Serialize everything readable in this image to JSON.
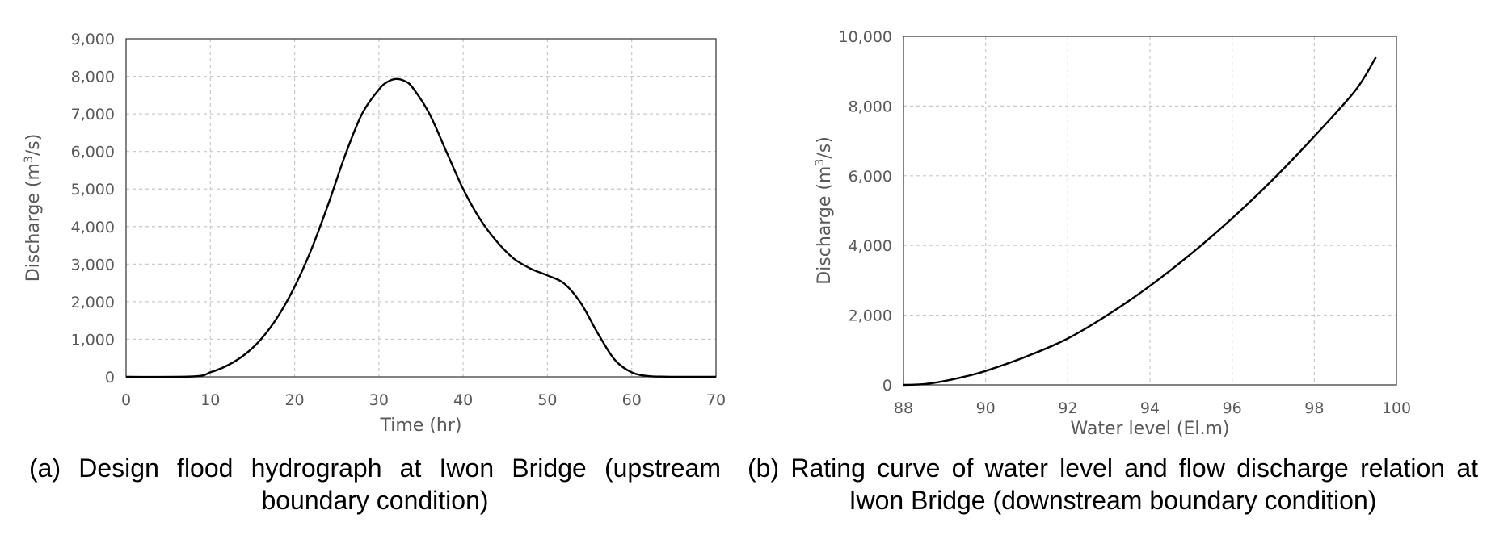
{
  "chart_data": [
    {
      "type": "line",
      "xlabel": "Time (hr)",
      "ylabel_prefix": "Discharge (m",
      "ylabel_sup": "3",
      "ylabel_suffix": "/s)",
      "xlim": [
        0,
        70
      ],
      "ylim": [
        0,
        9000
      ],
      "x_ticks": [
        "0",
        "10",
        "20",
        "30",
        "40",
        "50",
        "60",
        "70"
      ],
      "y_ticks": [
        "0",
        "1,000",
        "2,000",
        "3,000",
        "4,000",
        "5,000",
        "6,000",
        "7,000",
        "8,000",
        "9,000"
      ],
      "grid": true,
      "series": [
        {
          "x": [
            0,
            8,
            10,
            12,
            14,
            16,
            18,
            20,
            22,
            24,
            26,
            28,
            30,
            31,
            32,
            33,
            34,
            36,
            38,
            40,
            42,
            44,
            46,
            48,
            50,
            52,
            54,
            56,
            58,
            60,
            62,
            64,
            66,
            68,
            70
          ],
          "y": [
            0,
            10,
            120,
            300,
            580,
            1000,
            1600,
            2400,
            3400,
            4600,
            5900,
            7000,
            7650,
            7850,
            7930,
            7880,
            7700,
            7000,
            6000,
            5000,
            4200,
            3600,
            3150,
            2880,
            2700,
            2480,
            1950,
            1150,
            450,
            120,
            20,
            5,
            0,
            0,
            0
          ]
        }
      ],
      "caption": "(a) Design flood hydrograph at Iwon Bridge (upstream boundary condition)"
    },
    {
      "type": "line",
      "xlabel": "Water level (El.m)",
      "ylabel_prefix": "Discharge (m",
      "ylabel_sup": "3",
      "ylabel_suffix": "/s)",
      "xlim": [
        88,
        100
      ],
      "ylim": [
        0,
        10000
      ],
      "x_ticks": [
        "88",
        "90",
        "92",
        "94",
        "96",
        "98",
        "100"
      ],
      "y_ticks": [
        "0",
        "2,000",
        "4,000",
        "6,000",
        "8,000",
        "10,000"
      ],
      "grid": true,
      "series": [
        {
          "x": [
            88,
            88.5,
            89,
            89.5,
            90,
            91,
            92,
            93,
            94,
            95,
            96,
            97,
            98,
            99,
            99.5
          ],
          "y": [
            0,
            20,
            110,
            240,
            400,
            820,
            1330,
            2030,
            2840,
            3760,
            4780,
            5900,
            7130,
            8450,
            9400
          ]
        }
      ],
      "caption": "(b) Rating curve of water level and flow discharge relation at Iwon Bridge (downstream boundary condition)"
    }
  ]
}
